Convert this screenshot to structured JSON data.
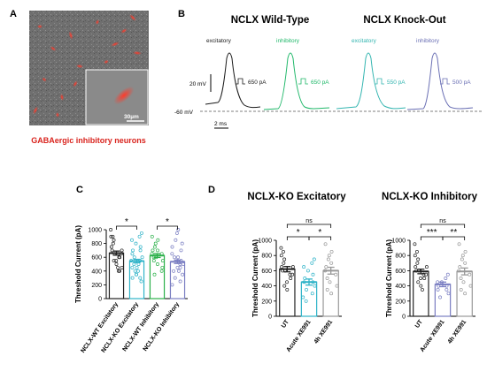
{
  "panels": {
    "a": {
      "letter": "A",
      "caption": "GABAergic inhibitory neurons",
      "scale_label": "30µm"
    },
    "b": {
      "letter": "B",
      "wt_title": "NCLX Wild-Type",
      "ko_title": "NCLX Knock-Out",
      "v_scale": "20 mV",
      "t_scale": "2 ms",
      "baseline": "-60 mV",
      "traces": [
        {
          "label": "excitatory",
          "current": "650 pA",
          "color": "#1a1a1a"
        },
        {
          "label": "inhibitory",
          "current": "650 pA",
          "color": "#20b86a"
        },
        {
          "label": "excitatory",
          "current": "550 pA",
          "color": "#33b5b0"
        },
        {
          "label": "inhibitory",
          "current": "500 pA",
          "color": "#6a6fb4"
        }
      ]
    },
    "c": {
      "letter": "C"
    },
    "d": {
      "letter": "D"
    }
  },
  "chart_data": [
    {
      "type": "bar",
      "panel": "C",
      "ylabel": "Threshold Current (pA)",
      "ylim": [
        0,
        1000
      ],
      "yticks": [
        0,
        200,
        400,
        600,
        800,
        1000
      ],
      "categories": [
        "NCLX-WT Excitatory",
        "NCLX-KO Excitatory",
        "NCLX-WT Inhibitory",
        "NCLX-KO Inhibitory"
      ],
      "values": [
        660,
        545,
        625,
        535
      ],
      "errors": [
        30,
        25,
        28,
        25
      ],
      "colors": [
        "#222222",
        "#2fb3c8",
        "#2bb04a",
        "#7a7ec2"
      ],
      "points": [
        [
          1000,
          900,
          900,
          850,
          800,
          750,
          700,
          700,
          650,
          650,
          600,
          600,
          550,
          550,
          500,
          450,
          450,
          400,
          400
        ],
        [
          950,
          900,
          850,
          800,
          750,
          700,
          700,
          650,
          600,
          600,
          550,
          550,
          500,
          500,
          450,
          450,
          400,
          400,
          350,
          350,
          300,
          300,
          250
        ],
        [
          900,
          850,
          800,
          750,
          700,
          700,
          650,
          650,
          600,
          600,
          550,
          550,
          500,
          450,
          400,
          350
        ],
        [
          1000,
          950,
          850,
          800,
          750,
          700,
          650,
          600,
          600,
          550,
          550,
          500,
          500,
          450,
          450,
          400,
          400,
          350,
          300,
          250,
          200
        ]
      ],
      "significance": [
        {
          "from": 0,
          "to": 1,
          "label": "*"
        },
        {
          "from": 2,
          "to": 3,
          "label": "*"
        }
      ]
    },
    {
      "type": "bar",
      "panel": "D",
      "title": "NCLX-KO Excitatory",
      "ylabel": "Threshold Current (pA)",
      "ylim": [
        0,
        1000
      ],
      "yticks": [
        0,
        200,
        400,
        600,
        800,
        1000
      ],
      "categories": [
        "UT",
        "Acute XE991",
        "4h XE991"
      ],
      "values": [
        620,
        450,
        600
      ],
      "errors": [
        35,
        40,
        45
      ],
      "colors": [
        "#222222",
        "#2fb3c8",
        "#999999"
      ],
      "points": [
        [
          900,
          850,
          800,
          750,
          700,
          650,
          650,
          600,
          600,
          550,
          550,
          500,
          450,
          400,
          350
        ],
        [
          750,
          700,
          650,
          600,
          550,
          500,
          450,
          450,
          400,
          350,
          300,
          250,
          200
        ],
        [
          950,
          850,
          800,
          750,
          700,
          650,
          600,
          550,
          500,
          450,
          400,
          350,
          300
        ]
      ],
      "significance": [
        {
          "from": 0,
          "to": 1,
          "label": "*"
        },
        {
          "from": 1,
          "to": 2,
          "label": "*"
        },
        {
          "from": 0,
          "to": 2,
          "label": "ns"
        }
      ]
    },
    {
      "type": "bar",
      "panel": "D",
      "title": "NCLX-KO Inhibitory",
      "ylabel": "Threshold Current (pA)",
      "ylim": [
        0,
        1000
      ],
      "yticks": [
        0,
        200,
        400,
        600,
        800,
        1000
      ],
      "categories": [
        "UT",
        "Acute XE991",
        "4h XE991"
      ],
      "values": [
        590,
        420,
        590
      ],
      "errors": [
        30,
        30,
        45
      ],
      "colors": [
        "#222222",
        "#7a7ec2",
        "#999999"
      ],
      "points": [
        [
          950,
          850,
          800,
          750,
          700,
          650,
          650,
          600,
          600,
          550,
          550,
          500,
          500,
          450,
          400,
          350
        ],
        [
          550,
          500,
          450,
          450,
          400,
          400,
          350,
          350,
          300,
          250
        ],
        [
          950,
          850,
          800,
          750,
          700,
          650,
          600,
          550,
          500,
          450,
          400,
          350,
          300
        ]
      ],
      "significance": [
        {
          "from": 0,
          "to": 1,
          "label": "***"
        },
        {
          "from": 1,
          "to": 2,
          "label": "**"
        },
        {
          "from": 0,
          "to": 2,
          "label": "ns"
        }
      ]
    }
  ]
}
